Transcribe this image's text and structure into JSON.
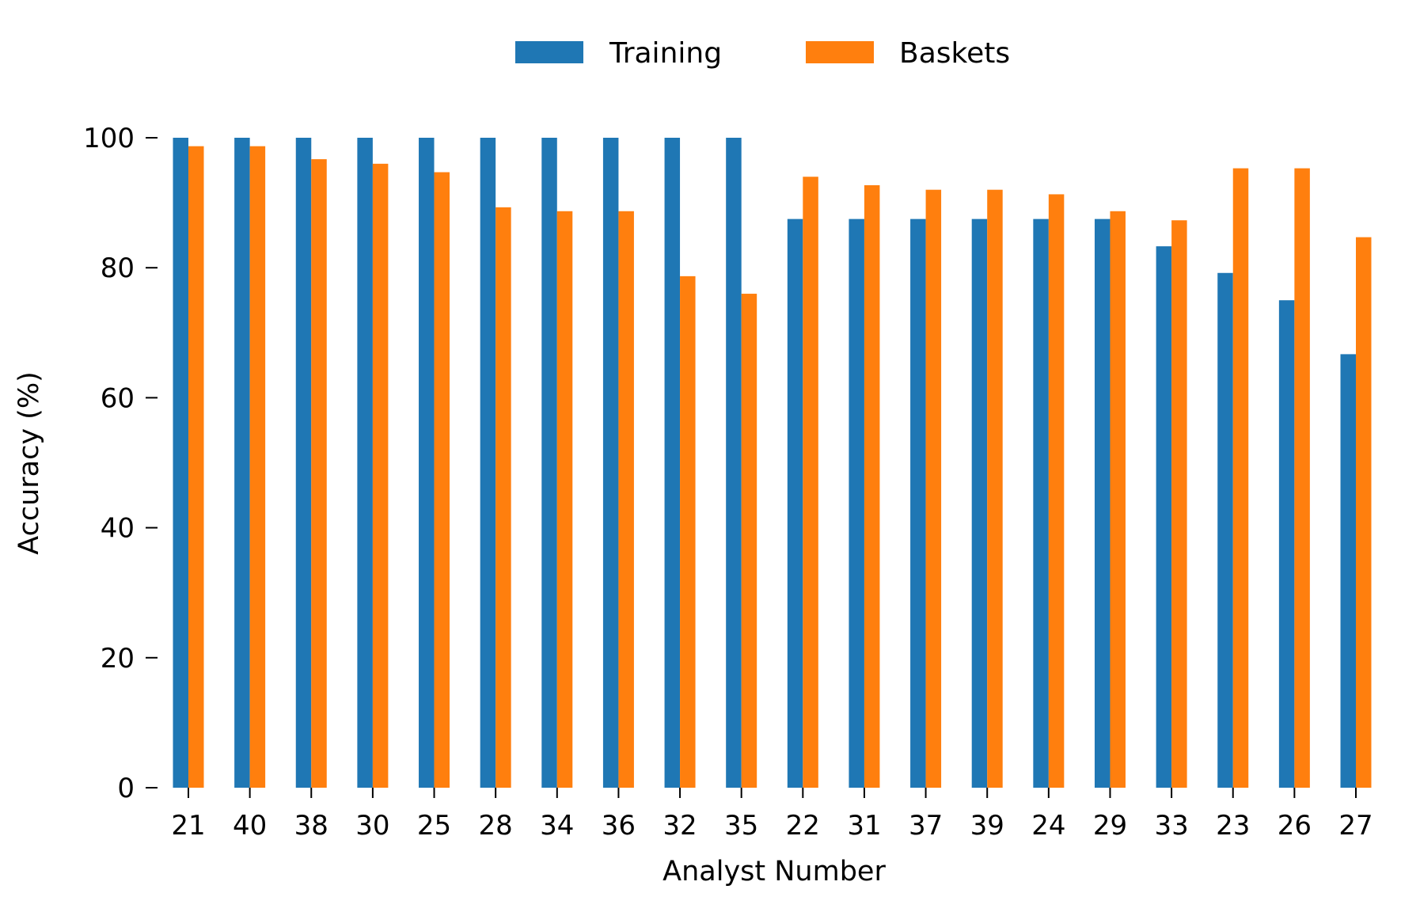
{
  "chart_data": {
    "type": "bar",
    "title": "",
    "xlabel": "Analyst Number",
    "ylabel": "Accuracy (%)",
    "ylim": [
      0,
      100
    ],
    "yticks": [
      0,
      20,
      40,
      60,
      80,
      100
    ],
    "grid": false,
    "legend_position": "top-center",
    "categories": [
      "21",
      "40",
      "38",
      "30",
      "25",
      "28",
      "34",
      "36",
      "32",
      "35",
      "22",
      "31",
      "37",
      "39",
      "24",
      "29",
      "33",
      "23",
      "26",
      "27"
    ],
    "series": [
      {
        "name": "Training",
        "color": "#1f77b4",
        "values": [
          100,
          100,
          100,
          100,
          100,
          100,
          100,
          100,
          100,
          100,
          87.5,
          87.5,
          87.5,
          87.5,
          87.5,
          87.5,
          83.3,
          79.2,
          75.0,
          66.7
        ]
      },
      {
        "name": "Baskets",
        "color": "#ff7f0e",
        "values": [
          98.7,
          98.7,
          96.7,
          96.0,
          94.7,
          89.3,
          88.7,
          88.7,
          78.7,
          76.0,
          94.0,
          92.7,
          92.0,
          92.0,
          91.3,
          88.7,
          87.3,
          95.3,
          95.3,
          84.7
        ]
      }
    ]
  }
}
